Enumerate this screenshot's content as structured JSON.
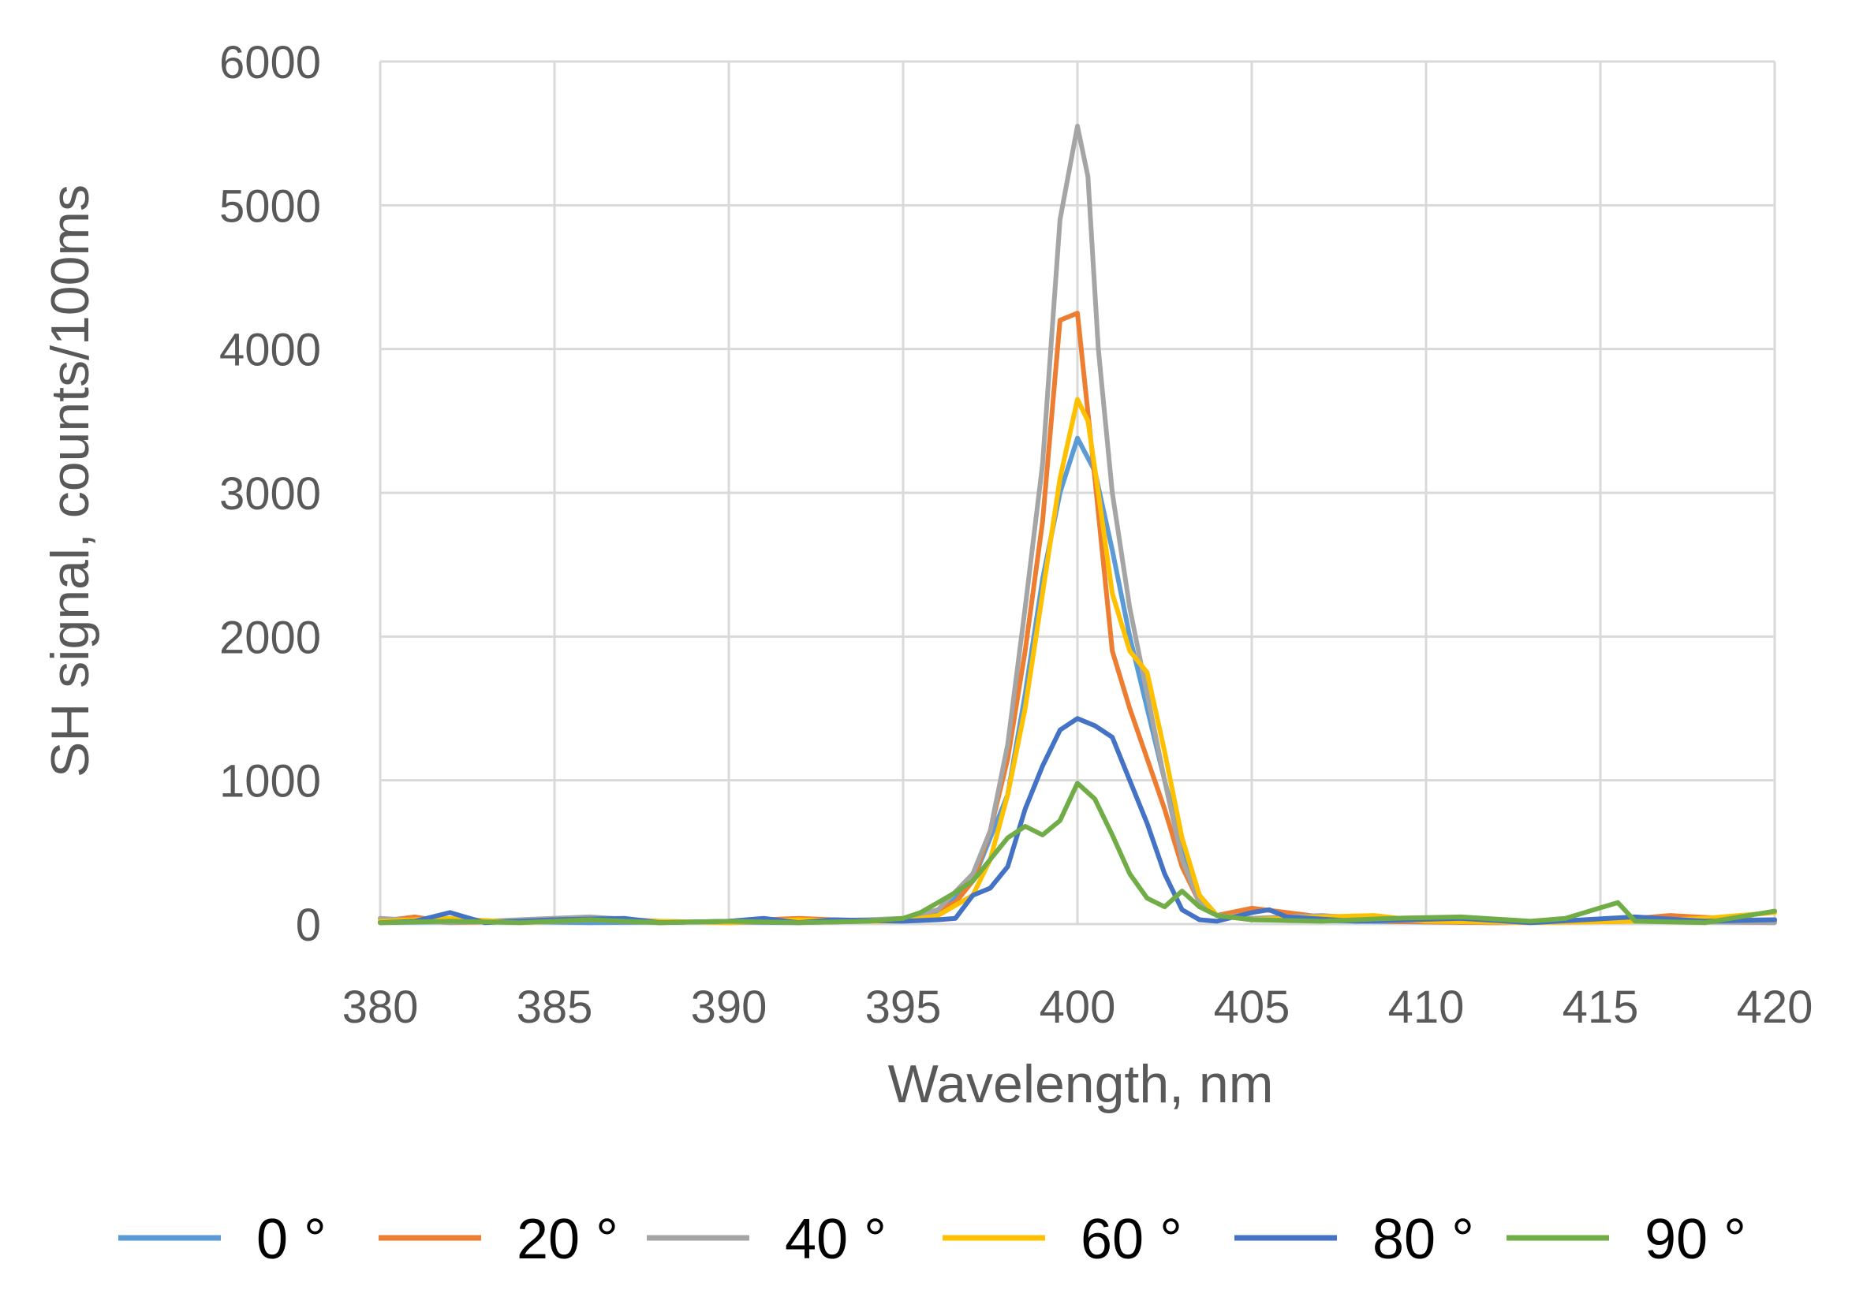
{
  "chart_data": {
    "type": "line",
    "title": "",
    "xlabel": "Wavelength, nm",
    "ylabel": "SH signal, counts/100ms",
    "xlim": [
      380,
      420
    ],
    "ylim": [
      0,
      6000
    ],
    "xticks": [
      380,
      385,
      390,
      395,
      400,
      405,
      410,
      415,
      420
    ],
    "yticks": [
      0,
      1000,
      2000,
      3000,
      4000,
      5000,
      6000
    ],
    "xtick_labels": [
      "380",
      "385",
      "390",
      "395",
      "400",
      "405",
      "410",
      "415",
      "420"
    ],
    "ytick_labels": [
      "0",
      "1000",
      "2000",
      "3000",
      "4000",
      "5000",
      "6000"
    ],
    "grid": true,
    "legend_position": "bottom",
    "series": [
      {
        "name": "0 °",
        "color": "#5b9bd5",
        "points": [
          [
            380,
            10
          ],
          [
            383,
            20
          ],
          [
            386,
            10
          ],
          [
            389,
            15
          ],
          [
            392,
            10
          ],
          [
            394,
            20
          ],
          [
            395,
            30
          ],
          [
            396,
            80
          ],
          [
            397,
            300
          ],
          [
            398,
            900
          ],
          [
            398.5,
            1600
          ],
          [
            399,
            2400
          ],
          [
            399.5,
            3000
          ],
          [
            400,
            3380
          ],
          [
            400.5,
            3150
          ],
          [
            401,
            2600
          ],
          [
            401.5,
            2000
          ],
          [
            402,
            1500
          ],
          [
            402.5,
            1000
          ],
          [
            403,
            550
          ],
          [
            403.5,
            200
          ],
          [
            404,
            60
          ],
          [
            405,
            30
          ],
          [
            408,
            20
          ],
          [
            412,
            10
          ],
          [
            416,
            20
          ],
          [
            420,
            30
          ]
        ]
      },
      {
        "name": "20 °",
        "color": "#ed7d31",
        "points": [
          [
            380,
            20
          ],
          [
            381,
            50
          ],
          [
            382,
            10
          ],
          [
            384,
            20
          ],
          [
            386,
            40
          ],
          [
            388,
            10
          ],
          [
            390,
            20
          ],
          [
            392,
            40
          ],
          [
            394,
            20
          ],
          [
            395,
            30
          ],
          [
            396,
            100
          ],
          [
            396.5,
            150
          ],
          [
            397,
            300
          ],
          [
            397.5,
            650
          ],
          [
            398,
            1150
          ],
          [
            398.5,
            1900
          ],
          [
            399,
            2800
          ],
          [
            399.5,
            4200
          ],
          [
            400,
            4250
          ],
          [
            400.5,
            3100
          ],
          [
            401,
            1900
          ],
          [
            401.5,
            1500
          ],
          [
            402,
            1150
          ],
          [
            402.5,
            800
          ],
          [
            403,
            400
          ],
          [
            403.5,
            150
          ],
          [
            404,
            60
          ],
          [
            405,
            110
          ],
          [
            406,
            80
          ],
          [
            407,
            50
          ],
          [
            409,
            20
          ],
          [
            412,
            10
          ],
          [
            415,
            20
          ],
          [
            417,
            60
          ],
          [
            420,
            20
          ]
        ]
      },
      {
        "name": "40 °",
        "color": "#a5a5a5",
        "points": [
          [
            380,
            40
          ],
          [
            382,
            10
          ],
          [
            384,
            30
          ],
          [
            386,
            50
          ],
          [
            388,
            20
          ],
          [
            390,
            10
          ],
          [
            392,
            20
          ],
          [
            394,
            30
          ],
          [
            395,
            40
          ],
          [
            396,
            100
          ],
          [
            397,
            350
          ],
          [
            397.5,
            650
          ],
          [
            398,
            1250
          ],
          [
            398.5,
            2200
          ],
          [
            399,
            3200
          ],
          [
            399.5,
            4900
          ],
          [
            400,
            5550
          ],
          [
            400.3,
            5200
          ],
          [
            400.6,
            4000
          ],
          [
            401,
            3000
          ],
          [
            401.5,
            2200
          ],
          [
            402,
            1600
          ],
          [
            402.5,
            1000
          ],
          [
            403,
            450
          ],
          [
            403.5,
            150
          ],
          [
            404,
            60
          ],
          [
            405,
            40
          ],
          [
            407,
            60
          ],
          [
            409,
            30
          ],
          [
            412,
            10
          ],
          [
            416,
            20
          ],
          [
            420,
            10
          ]
        ]
      },
      {
        "name": "60 °",
        "color": "#ffc000",
        "points": [
          [
            380,
            20
          ],
          [
            382,
            40
          ],
          [
            384,
            10
          ],
          [
            386,
            30
          ],
          [
            388,
            20
          ],
          [
            390,
            10
          ],
          [
            392,
            30
          ],
          [
            394,
            20
          ],
          [
            395,
            20
          ],
          [
            396,
            60
          ],
          [
            397,
            200
          ],
          [
            397.5,
            450
          ],
          [
            398,
            900
          ],
          [
            398.5,
            1500
          ],
          [
            399,
            2300
          ],
          [
            399.5,
            3100
          ],
          [
            400,
            3650
          ],
          [
            400.3,
            3500
          ],
          [
            400.6,
            3000
          ],
          [
            401,
            2300
          ],
          [
            401.5,
            1900
          ],
          [
            402,
            1750
          ],
          [
            402.5,
            1200
          ],
          [
            403,
            600
          ],
          [
            403.5,
            200
          ],
          [
            404,
            60
          ],
          [
            405,
            30
          ],
          [
            407,
            50
          ],
          [
            408.5,
            60
          ],
          [
            410,
            20
          ],
          [
            413,
            10
          ],
          [
            416,
            20
          ],
          [
            418,
            40
          ],
          [
            420,
            80
          ]
        ]
      },
      {
        "name": "80 °",
        "color": "#4472c4",
        "points": [
          [
            380,
            10
          ],
          [
            381,
            20
          ],
          [
            382,
            80
          ],
          [
            383,
            10
          ],
          [
            385,
            30
          ],
          [
            387,
            40
          ],
          [
            388,
            10
          ],
          [
            390,
            20
          ],
          [
            391,
            40
          ],
          [
            392,
            10
          ],
          [
            393,
            30
          ],
          [
            395,
            20
          ],
          [
            396,
            30
          ],
          [
            396.5,
            40
          ],
          [
            397,
            200
          ],
          [
            397.5,
            250
          ],
          [
            398,
            400
          ],
          [
            398.5,
            800
          ],
          [
            399,
            1100
          ],
          [
            399.5,
            1350
          ],
          [
            400,
            1430
          ],
          [
            400.5,
            1380
          ],
          [
            401,
            1300
          ],
          [
            401.5,
            1000
          ],
          [
            402,
            700
          ],
          [
            402.5,
            350
          ],
          [
            403,
            100
          ],
          [
            403.5,
            30
          ],
          [
            404,
            20
          ],
          [
            405,
            80
          ],
          [
            405.5,
            100
          ],
          [
            406,
            50
          ],
          [
            408,
            20
          ],
          [
            411,
            40
          ],
          [
            413,
            10
          ],
          [
            416,
            50
          ],
          [
            418,
            20
          ],
          [
            420,
            30
          ]
        ]
      },
      {
        "name": "90 °",
        "color": "#70ad47",
        "points": [
          [
            380,
            10
          ],
          [
            382,
            20
          ],
          [
            384,
            10
          ],
          [
            386,
            30
          ],
          [
            388,
            10
          ],
          [
            390,
            20
          ],
          [
            392,
            10
          ],
          [
            394,
            20
          ],
          [
            395,
            40
          ],
          [
            395.5,
            80
          ],
          [
            396,
            150
          ],
          [
            396.5,
            220
          ],
          [
            397,
            300
          ],
          [
            397.5,
            450
          ],
          [
            398,
            600
          ],
          [
            398.5,
            680
          ],
          [
            399,
            620
          ],
          [
            399.5,
            720
          ],
          [
            400,
            980
          ],
          [
            400.5,
            870
          ],
          [
            401,
            620
          ],
          [
            401.5,
            350
          ],
          [
            402,
            180
          ],
          [
            402.5,
            120
          ],
          [
            403,
            230
          ],
          [
            403.5,
            120
          ],
          [
            404,
            60
          ],
          [
            405,
            30
          ],
          [
            407,
            20
          ],
          [
            409,
            40
          ],
          [
            411,
            50
          ],
          [
            413,
            20
          ],
          [
            414,
            40
          ],
          [
            415.5,
            150
          ],
          [
            416,
            20
          ],
          [
            418,
            10
          ],
          [
            420,
            90
          ]
        ]
      }
    ]
  }
}
